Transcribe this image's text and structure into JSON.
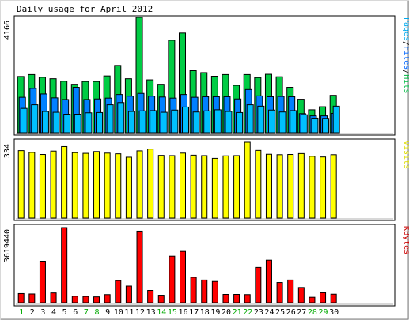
{
  "chart_data": {
    "type": "bar",
    "title": "Daily usage for April 2012",
    "categories": [
      "1",
      "2",
      "3",
      "4",
      "5",
      "6",
      "7",
      "8",
      "9",
      "10",
      "11",
      "12",
      "13",
      "14",
      "15",
      "16",
      "17",
      "18",
      "19",
      "20",
      "21",
      "22",
      "23",
      "24",
      "25",
      "26",
      "27",
      "28",
      "29",
      "30"
    ],
    "weekend_days": [
      "1",
      "7",
      "8",
      "14",
      "15",
      "21",
      "22",
      "28",
      "29"
    ],
    "panels": [
      {
        "name": "hits-files-pages",
        "max_label": "4166",
        "ylim": [
          0,
          4166
        ],
        "legend": [
          {
            "text": "Pages",
            "color": "#00aaee"
          },
          {
            "text": "/",
            "color": "#000000"
          },
          {
            "text": "Files",
            "color": "#0066ff"
          },
          {
            "text": "/",
            "color": "#000000"
          },
          {
            "text": "Hits",
            "color": "#00bb44"
          }
        ],
        "series": [
          {
            "name": "Hits",
            "color": "#00cc44",
            "values": [
              2030,
              2100,
              2000,
              1950,
              1860,
              1750,
              1850,
              1850,
              2050,
              2430,
              1950,
              4166,
              1910,
              1750,
              3340,
              3600,
              2240,
              2170,
              2040,
              2100,
              1710,
              2100,
              1990,
              2110,
              2020,
              1640,
              1210,
              830,
              940,
              1350
            ]
          },
          {
            "name": "Files",
            "color": "#0080ff",
            "values": [
              1280,
              1600,
              1400,
              1260,
              1200,
              1640,
              1200,
              1220,
              1250,
              1380,
              1320,
              1420,
              1320,
              1290,
              1250,
              1380,
              1280,
              1300,
              1300,
              1300,
              1220,
              1560,
              1330,
              1300,
              1310,
              1300,
              690,
              610,
              610,
              700
            ]
          },
          {
            "name": "Pages",
            "color": "#00c0ff",
            "values": [
              880,
              1010,
              770,
              740,
              670,
              670,
              720,
              730,
              1010,
              1090,
              770,
              790,
              800,
              740,
              820,
              930,
              750,
              790,
              830,
              770,
              730,
              1010,
              960,
              820,
              750,
              800,
              650,
              530,
              520,
              960
            ]
          }
        ]
      },
      {
        "name": "visits",
        "max_label": "334",
        "ylim": [
          0,
          334
        ],
        "legend": [
          {
            "text": "Visits",
            "color": "#dddd00"
          }
        ],
        "series": [
          {
            "name": "Visits",
            "color": "#ffff00",
            "values": [
              297,
              289,
              280,
              295,
              315,
              288,
              285,
              293,
              286,
              283,
              268,
              296,
              304,
              276,
              275,
              286,
              277,
              275,
              263,
              274,
              275,
              334,
              298,
              281,
              279,
              280,
              284,
              272,
              269,
              279
            ]
          }
        ]
      },
      {
        "name": "kbytes",
        "max_label": "3619440",
        "ylim": [
          0,
          3619440
        ],
        "legend": [
          {
            "text": "KBytes",
            "color": "#cc0000"
          }
        ],
        "series": [
          {
            "name": "KBytes",
            "color": "#ff0000",
            "values": [
              440000,
              420000,
              2000000,
              470000,
              3619440,
              310000,
              300000,
              280000,
              390000,
              1060000,
              800000,
              3450000,
              590000,
              360000,
              2240000,
              2470000,
              1220000,
              1090000,
              1020000,
              400000,
              400000,
              390000,
              1700000,
              2050000,
              970000,
              1090000,
              730000,
              260000,
              480000,
              410000
            ]
          }
        ]
      }
    ]
  }
}
